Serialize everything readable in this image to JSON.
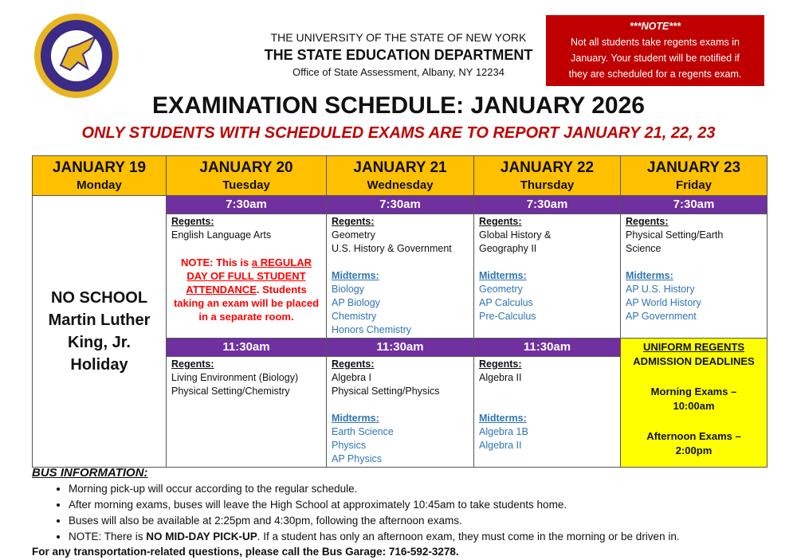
{
  "logo": {
    "text": "SPRINGVILLE-GRIFFITH INSTITUTE CENTRAL SCHOOL DISTRICT",
    "colors": {
      "gold": "#e8b420",
      "purple": "#3b2a86"
    }
  },
  "header": {
    "line1": "THE UNIVERSITY OF THE STATE OF NEW YORK",
    "line2": "THE STATE EDUCATION DEPARTMENT",
    "line3": "Office of State Assessment, Albany, NY 12234"
  },
  "note": {
    "title": "***NOTE***",
    "lines": [
      "Not all students take regents exams in",
      "January. Your student will be notified if",
      "they are scheduled for a regents exam."
    ]
  },
  "title": "EXAMINATION SCHEDULE: JANUARY 2026",
  "subtitle": "ONLY STUDENTS WITH SCHEDULED EXAMS ARE TO REPORT JANUARY 21, 22, 23",
  "days": [
    {
      "date": "JANUARY 19",
      "weekday": "Monday"
    },
    {
      "date": "JANUARY 20",
      "weekday": "Tuesday"
    },
    {
      "date": "JANUARY 21",
      "weekday": "Wednesday"
    },
    {
      "date": "JANUARY 22",
      "weekday": "Thursday"
    },
    {
      "date": "JANUARY 23",
      "weekday": "Friday"
    }
  ],
  "times": {
    "morning": "7:30am",
    "afternoon": "11:30am"
  },
  "labels": {
    "regents": "Regents:",
    "midterms": "Midterms:"
  },
  "no_school": [
    "NO SCHOOL",
    "Martin Luther",
    "King, Jr.",
    "Holiday"
  ],
  "morning": {
    "jan20": {
      "regents": [
        "English Language Arts"
      ],
      "note": {
        "a": "NOTE: This is ",
        "b": "a REGULAR DAY OF FULL STUDENT ATTENDANCE",
        "c": ". Students taking an exam will be placed in a separate room."
      }
    },
    "jan21": {
      "regents": [
        "Geometry",
        "U.S. History & Government"
      ],
      "midterms": [
        "Biology",
        "AP Biology",
        "Chemistry",
        "Honors Chemistry"
      ]
    },
    "jan22": {
      "regents": [
        "Global History &",
        "Geography II"
      ],
      "midterms": [
        "Geometry",
        "AP Calculus",
        "Pre-Calculus"
      ]
    },
    "jan23": {
      "regents": [
        "Physical Setting/Earth",
        "Science"
      ],
      "midterms": [
        "AP U.S. History",
        "AP World History",
        "AP Government"
      ]
    }
  },
  "afternoon": {
    "jan20": {
      "regents": [
        "Living Environment (Biology)",
        "Physical Setting/Chemistry"
      ]
    },
    "jan21": {
      "regents": [
        "Algebra I",
        "Physical Setting/Physics"
      ],
      "midterms": [
        "Earth Science",
        "Physics",
        "AP Physics"
      ]
    },
    "jan22": {
      "regents": [
        "Algebra II"
      ],
      "midterms": [
        "Algebra 1B",
        "Algebra II"
      ]
    }
  },
  "deadlines": {
    "title1": "UNIFORM REGENTS",
    "title2": "ADMISSION DEADLINES",
    "m1": "Morning Exams –",
    "m2": "10:00am",
    "a1": "Afternoon Exams –",
    "a2": "2:00pm"
  },
  "bus": {
    "title": "BUS INFORMATION:",
    "items": [
      "Morning pick-up will occur according to the regular schedule.",
      "After morning exams, buses will leave the High School at approximately 10:45am to take students home.",
      "Buses will also be available at 2:25pm and 4:30pm, following the afternoon exams."
    ],
    "last_a": "NOTE: There is ",
    "last_b": "NO MID-DAY PICK-UP",
    "last_c": ". If a student has only an afternoon exam, they must come in the morning or be driven in.",
    "contact": "For any transportation-related questions, please call the Bus Garage: 716-592-3278."
  }
}
